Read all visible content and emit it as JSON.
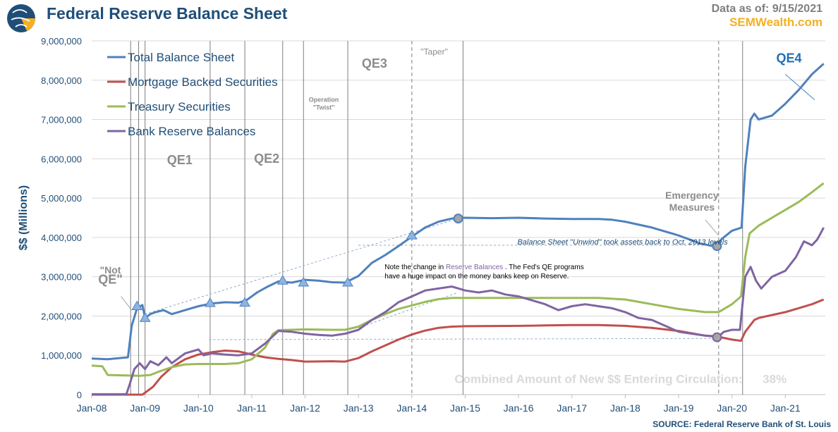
{
  "header": {
    "title": "Federal Reserve Balance Sheet",
    "data_as_of_label": "Data as of:",
    "data_as_of_value": "9/15/2021",
    "brand": "SEMWealth.com",
    "logo_icon": "globe-logo-icon"
  },
  "footer": {
    "source": "SOURCE:  Federal Reserve Bank of St. Louis"
  },
  "chart_data": {
    "type": "line",
    "ylabel": "$$ (Millions)",
    "xlabel": "",
    "ylim": [
      0,
      9000000
    ],
    "xlim": [
      2008.0,
      2021.75
    ],
    "y_ticks": [
      0,
      1000000,
      2000000,
      3000000,
      4000000,
      5000000,
      6000000,
      7000000,
      8000000,
      9000000
    ],
    "y_tick_labels": [
      "0",
      "1,000,000",
      "2,000,000",
      "3,000,000",
      "4,000,000",
      "5,000,000",
      "6,000,000",
      "7,000,000",
      "8,000,000",
      "9,000,000"
    ],
    "x_ticks": [
      2008,
      2009,
      2010,
      2011,
      2012,
      2013,
      2014,
      2015,
      2016,
      2017,
      2018,
      2019,
      2020,
      2021
    ],
    "x_tick_labels": [
      "Jan-08",
      "Jan-09",
      "Jan-10",
      "Jan-11",
      "Jan-12",
      "Jan-13",
      "Jan-14",
      "Jan-15",
      "Jan-16",
      "Jan-17",
      "Jan-18",
      "Jan-19",
      "Jan-20",
      "Jan-21"
    ],
    "grid": true,
    "legend_position": "top-left",
    "series": [
      {
        "name": "Total Balance Sheet",
        "color": "#4f81bd",
        "points": [
          [
            2008.0,
            920000
          ],
          [
            2008.3,
            900000
          ],
          [
            2008.68,
            950000
          ],
          [
            2008.75,
            1750000
          ],
          [
            2008.85,
            2200000
          ],
          [
            2008.95,
            2280000
          ],
          [
            2009.0,
            1950000
          ],
          [
            2009.1,
            2050000
          ],
          [
            2009.2,
            2100000
          ],
          [
            2009.35,
            2150000
          ],
          [
            2009.5,
            2050000
          ],
          [
            2009.75,
            2150000
          ],
          [
            2010.0,
            2250000
          ],
          [
            2010.25,
            2320000
          ],
          [
            2010.5,
            2350000
          ],
          [
            2010.75,
            2340000
          ],
          [
            2010.9,
            2400000
          ],
          [
            2011.1,
            2600000
          ],
          [
            2011.3,
            2750000
          ],
          [
            2011.5,
            2880000
          ],
          [
            2011.75,
            2850000
          ],
          [
            2012.0,
            2920000
          ],
          [
            2012.25,
            2900000
          ],
          [
            2012.5,
            2860000
          ],
          [
            2012.75,
            2850000
          ],
          [
            2013.0,
            3020000
          ],
          [
            2013.25,
            3350000
          ],
          [
            2013.5,
            3550000
          ],
          [
            2013.75,
            3780000
          ],
          [
            2014.0,
            4020000
          ],
          [
            2014.25,
            4250000
          ],
          [
            2014.5,
            4400000
          ],
          [
            2014.75,
            4480000
          ],
          [
            2015.0,
            4500000
          ],
          [
            2015.5,
            4490000
          ],
          [
            2016.0,
            4500000
          ],
          [
            2016.5,
            4480000
          ],
          [
            2017.0,
            4470000
          ],
          [
            2017.5,
            4470000
          ],
          [
            2017.75,
            4450000
          ],
          [
            2018.0,
            4400000
          ],
          [
            2018.5,
            4250000
          ],
          [
            2019.0,
            4050000
          ],
          [
            2019.4,
            3850000
          ],
          [
            2019.7,
            3760000
          ],
          [
            2019.8,
            3950000
          ],
          [
            2020.0,
            4170000
          ],
          [
            2020.18,
            4250000
          ],
          [
            2020.25,
            5800000
          ],
          [
            2020.35,
            7000000
          ],
          [
            2020.42,
            7150000
          ],
          [
            2020.5,
            7000000
          ],
          [
            2020.75,
            7100000
          ],
          [
            2021.0,
            7400000
          ],
          [
            2021.25,
            7750000
          ],
          [
            2021.5,
            8150000
          ],
          [
            2021.72,
            8420000
          ]
        ]
      },
      {
        "name": "Mortgage Backed Securities",
        "color": "#c0504d",
        "points": [
          [
            2008.0,
            0
          ],
          [
            2008.95,
            0
          ],
          [
            2009.15,
            200000
          ],
          [
            2009.3,
            450000
          ],
          [
            2009.5,
            700000
          ],
          [
            2009.75,
            900000
          ],
          [
            2010.0,
            1020000
          ],
          [
            2010.25,
            1080000
          ],
          [
            2010.5,
            1120000
          ],
          [
            2010.75,
            1100000
          ],
          [
            2011.0,
            1020000
          ],
          [
            2011.25,
            950000
          ],
          [
            2011.5,
            910000
          ],
          [
            2011.75,
            880000
          ],
          [
            2012.0,
            840000
          ],
          [
            2012.5,
            850000
          ],
          [
            2012.75,
            840000
          ],
          [
            2013.0,
            930000
          ],
          [
            2013.25,
            1100000
          ],
          [
            2013.5,
            1250000
          ],
          [
            2013.75,
            1400000
          ],
          [
            2014.0,
            1530000
          ],
          [
            2014.25,
            1630000
          ],
          [
            2014.5,
            1700000
          ],
          [
            2014.75,
            1730000
          ],
          [
            2015.0,
            1740000
          ],
          [
            2016.0,
            1750000
          ],
          [
            2016.5,
            1760000
          ],
          [
            2017.0,
            1770000
          ],
          [
            2017.5,
            1770000
          ],
          [
            2018.0,
            1750000
          ],
          [
            2018.5,
            1700000
          ],
          [
            2019.0,
            1620000
          ],
          [
            2019.5,
            1500000
          ],
          [
            2019.75,
            1470000
          ],
          [
            2020.0,
            1400000
          ],
          [
            2020.17,
            1370000
          ],
          [
            2020.25,
            1600000
          ],
          [
            2020.42,
            1900000
          ],
          [
            2020.5,
            1950000
          ],
          [
            2021.0,
            2100000
          ],
          [
            2021.5,
            2300000
          ],
          [
            2021.72,
            2420000
          ]
        ]
      },
      {
        "name": "Treasury Securities",
        "color": "#9bbb59",
        "points": [
          [
            2008.0,
            740000
          ],
          [
            2008.2,
            720000
          ],
          [
            2008.3,
            500000
          ],
          [
            2008.9,
            480000
          ],
          [
            2009.1,
            500000
          ],
          [
            2009.25,
            580000
          ],
          [
            2009.5,
            700000
          ],
          [
            2009.75,
            770000
          ],
          [
            2010.0,
            780000
          ],
          [
            2010.5,
            780000
          ],
          [
            2010.75,
            800000
          ],
          [
            2011.0,
            900000
          ],
          [
            2011.25,
            1200000
          ],
          [
            2011.4,
            1550000
          ],
          [
            2011.5,
            1640000
          ],
          [
            2012.0,
            1660000
          ],
          [
            2012.5,
            1650000
          ],
          [
            2012.75,
            1650000
          ],
          [
            2013.0,
            1730000
          ],
          [
            2013.25,
            1900000
          ],
          [
            2013.5,
            2050000
          ],
          [
            2013.75,
            2180000
          ],
          [
            2014.0,
            2270000
          ],
          [
            2014.25,
            2360000
          ],
          [
            2014.5,
            2430000
          ],
          [
            2014.75,
            2460000
          ],
          [
            2015.0,
            2460000
          ],
          [
            2016.0,
            2460000
          ],
          [
            2017.0,
            2460000
          ],
          [
            2017.5,
            2460000
          ],
          [
            2018.0,
            2420000
          ],
          [
            2018.5,
            2300000
          ],
          [
            2019.0,
            2180000
          ],
          [
            2019.5,
            2100000
          ],
          [
            2019.75,
            2100000
          ],
          [
            2020.0,
            2300000
          ],
          [
            2020.17,
            2500000
          ],
          [
            2020.25,
            3500000
          ],
          [
            2020.33,
            4100000
          ],
          [
            2020.5,
            4300000
          ],
          [
            2020.75,
            4500000
          ],
          [
            2021.0,
            4700000
          ],
          [
            2021.25,
            4900000
          ],
          [
            2021.5,
            5150000
          ],
          [
            2021.72,
            5380000
          ]
        ]
      },
      {
        "name": "Bank Reserve Balances",
        "color": "#8064a2",
        "points": [
          [
            2008.0,
            10000
          ],
          [
            2008.65,
            10000
          ],
          [
            2008.72,
            300000
          ],
          [
            2008.8,
            650000
          ],
          [
            2008.9,
            800000
          ],
          [
            2009.0,
            650000
          ],
          [
            2009.1,
            850000
          ],
          [
            2009.25,
            750000
          ],
          [
            2009.4,
            950000
          ],
          [
            2009.5,
            800000
          ],
          [
            2009.75,
            1050000
          ],
          [
            2010.0,
            1150000
          ],
          [
            2010.1,
            1000000
          ],
          [
            2010.25,
            1050000
          ],
          [
            2010.5,
            1020000
          ],
          [
            2010.75,
            1000000
          ],
          [
            2011.0,
            1050000
          ],
          [
            2011.25,
            1300000
          ],
          [
            2011.5,
            1620000
          ],
          [
            2011.75,
            1600000
          ],
          [
            2012.0,
            1550000
          ],
          [
            2012.25,
            1520000
          ],
          [
            2012.5,
            1500000
          ],
          [
            2012.75,
            1550000
          ],
          [
            2013.0,
            1650000
          ],
          [
            2013.25,
            1900000
          ],
          [
            2013.5,
            2100000
          ],
          [
            2013.75,
            2350000
          ],
          [
            2014.0,
            2500000
          ],
          [
            2014.25,
            2650000
          ],
          [
            2014.5,
            2700000
          ],
          [
            2014.75,
            2750000
          ],
          [
            2015.0,
            2650000
          ],
          [
            2015.25,
            2600000
          ],
          [
            2015.5,
            2650000
          ],
          [
            2015.75,
            2550000
          ],
          [
            2016.0,
            2500000
          ],
          [
            2016.25,
            2400000
          ],
          [
            2016.5,
            2300000
          ],
          [
            2016.75,
            2150000
          ],
          [
            2017.0,
            2250000
          ],
          [
            2017.25,
            2300000
          ],
          [
            2017.5,
            2250000
          ],
          [
            2017.75,
            2200000
          ],
          [
            2018.0,
            2100000
          ],
          [
            2018.25,
            1950000
          ],
          [
            2018.5,
            1900000
          ],
          [
            2018.75,
            1750000
          ],
          [
            2019.0,
            1600000
          ],
          [
            2019.25,
            1550000
          ],
          [
            2019.5,
            1500000
          ],
          [
            2019.75,
            1480000
          ],
          [
            2019.85,
            1600000
          ],
          [
            2020.0,
            1650000
          ],
          [
            2020.15,
            1650000
          ],
          [
            2020.25,
            3000000
          ],
          [
            2020.35,
            3250000
          ],
          [
            2020.45,
            2900000
          ],
          [
            2020.55,
            2700000
          ],
          [
            2020.75,
            3000000
          ],
          [
            2021.0,
            3150000
          ],
          [
            2021.2,
            3500000
          ],
          [
            2021.35,
            3900000
          ],
          [
            2021.5,
            3800000
          ],
          [
            2021.6,
            3950000
          ],
          [
            2021.72,
            4250000
          ]
        ]
      }
    ],
    "vertical_markers": [
      2008.73,
      2008.88,
      2009.0,
      2010.22,
      2010.87,
      2011.58,
      2011.97,
      2012.8,
      2014.96,
      2020.2
    ],
    "dashed_markers": [
      2014.0,
      2019.75
    ],
    "event_labels": [
      {
        "text": "\"Not",
        "x": 2008.35,
        "y": 3080000
      },
      {
        "text": "QE\"",
        "x": 2008.35,
        "y": 2820000
      },
      {
        "text": "QE1",
        "x": 2009.65,
        "y": 5860000
      },
      {
        "text": "QE2",
        "x": 2011.28,
        "y": 5900000
      },
      {
        "text": "Operation",
        "x": 2012.35,
        "y": 7450000
      },
      {
        "text": "\"Twist\"",
        "x": 2012.35,
        "y": 7250000
      },
      {
        "text": "QE3",
        "x": 2013.3,
        "y": 8320000
      },
      {
        "text": "\"Taper\"",
        "x": 2014.42,
        "y": 8650000
      },
      {
        "text": "Emergency",
        "x": 2019.25,
        "y": 4980000
      },
      {
        "text": "Measures",
        "x": 2019.25,
        "y": 4680000
      },
      {
        "text": "QE4",
        "x": 2021.07,
        "y": 8450000
      }
    ],
    "annotations": [
      {
        "text": "Balance Sheet \"Unwind\" took assets back to Oct. 2013 levels",
        "x": 2017.95,
        "y": 3820000
      },
      {
        "text": "Note the change in",
        "x": 2015.5,
        "y": 3190000,
        "highlight": "Reserve Balances",
        "after": ". The Fed's QE programs"
      },
      {
        "text": "have a huge impact on the money banks keep on Reserve.",
        "x": 2015.5,
        "y": 2960000
      }
    ],
    "markers": [
      {
        "x": 2008.85,
        "y": 2250000,
        "color": "#4f81bd",
        "shape": "triangle"
      },
      {
        "x": 2009.0,
        "y": 1950000,
        "color": "#4f81bd",
        "shape": "triangle"
      },
      {
        "x": 2010.22,
        "y": 2330000,
        "color": "#4f81bd",
        "shape": "triangle"
      },
      {
        "x": 2010.87,
        "y": 2340000,
        "color": "#4f81bd",
        "shape": "triangle"
      },
      {
        "x": 2011.58,
        "y": 2900000,
        "color": "#4f81bd",
        "shape": "triangle"
      },
      {
        "x": 2011.97,
        "y": 2850000,
        "color": "#4f81bd",
        "shape": "triangle"
      },
      {
        "x": 2012.8,
        "y": 2850000,
        "color": "#4f81bd",
        "shape": "triangle"
      },
      {
        "x": 2014.0,
        "y": 4050000,
        "color": "#4f81bd",
        "shape": "triangle"
      },
      {
        "x": 2014.87,
        "y": 4480000,
        "color": "#4f81bd",
        "shape": "circle"
      },
      {
        "x": 2019.72,
        "y": 3780000,
        "color": "#4f81bd",
        "shape": "circle"
      },
      {
        "x": 2019.72,
        "y": 1460000,
        "color": "#8064a2",
        "shape": "circle"
      }
    ],
    "dashed_lines": [
      [
        [
          2009.0,
          2050000
        ],
        [
          2014.87,
          4480000
        ]
      ],
      [
        [
          2013.0,
          3800000
        ],
        [
          2019.72,
          3800000
        ]
      ],
      [
        [
          2010.2,
          1400000
        ],
        [
          2019.72,
          1430000
        ]
      ],
      [
        [
          2013.0,
          1700000
        ],
        [
          2014.87,
          2600000
        ]
      ]
    ],
    "bottom_text": {
      "label": "Combined Amount of New $$ Entering Circulation:",
      "value": "38%"
    }
  }
}
